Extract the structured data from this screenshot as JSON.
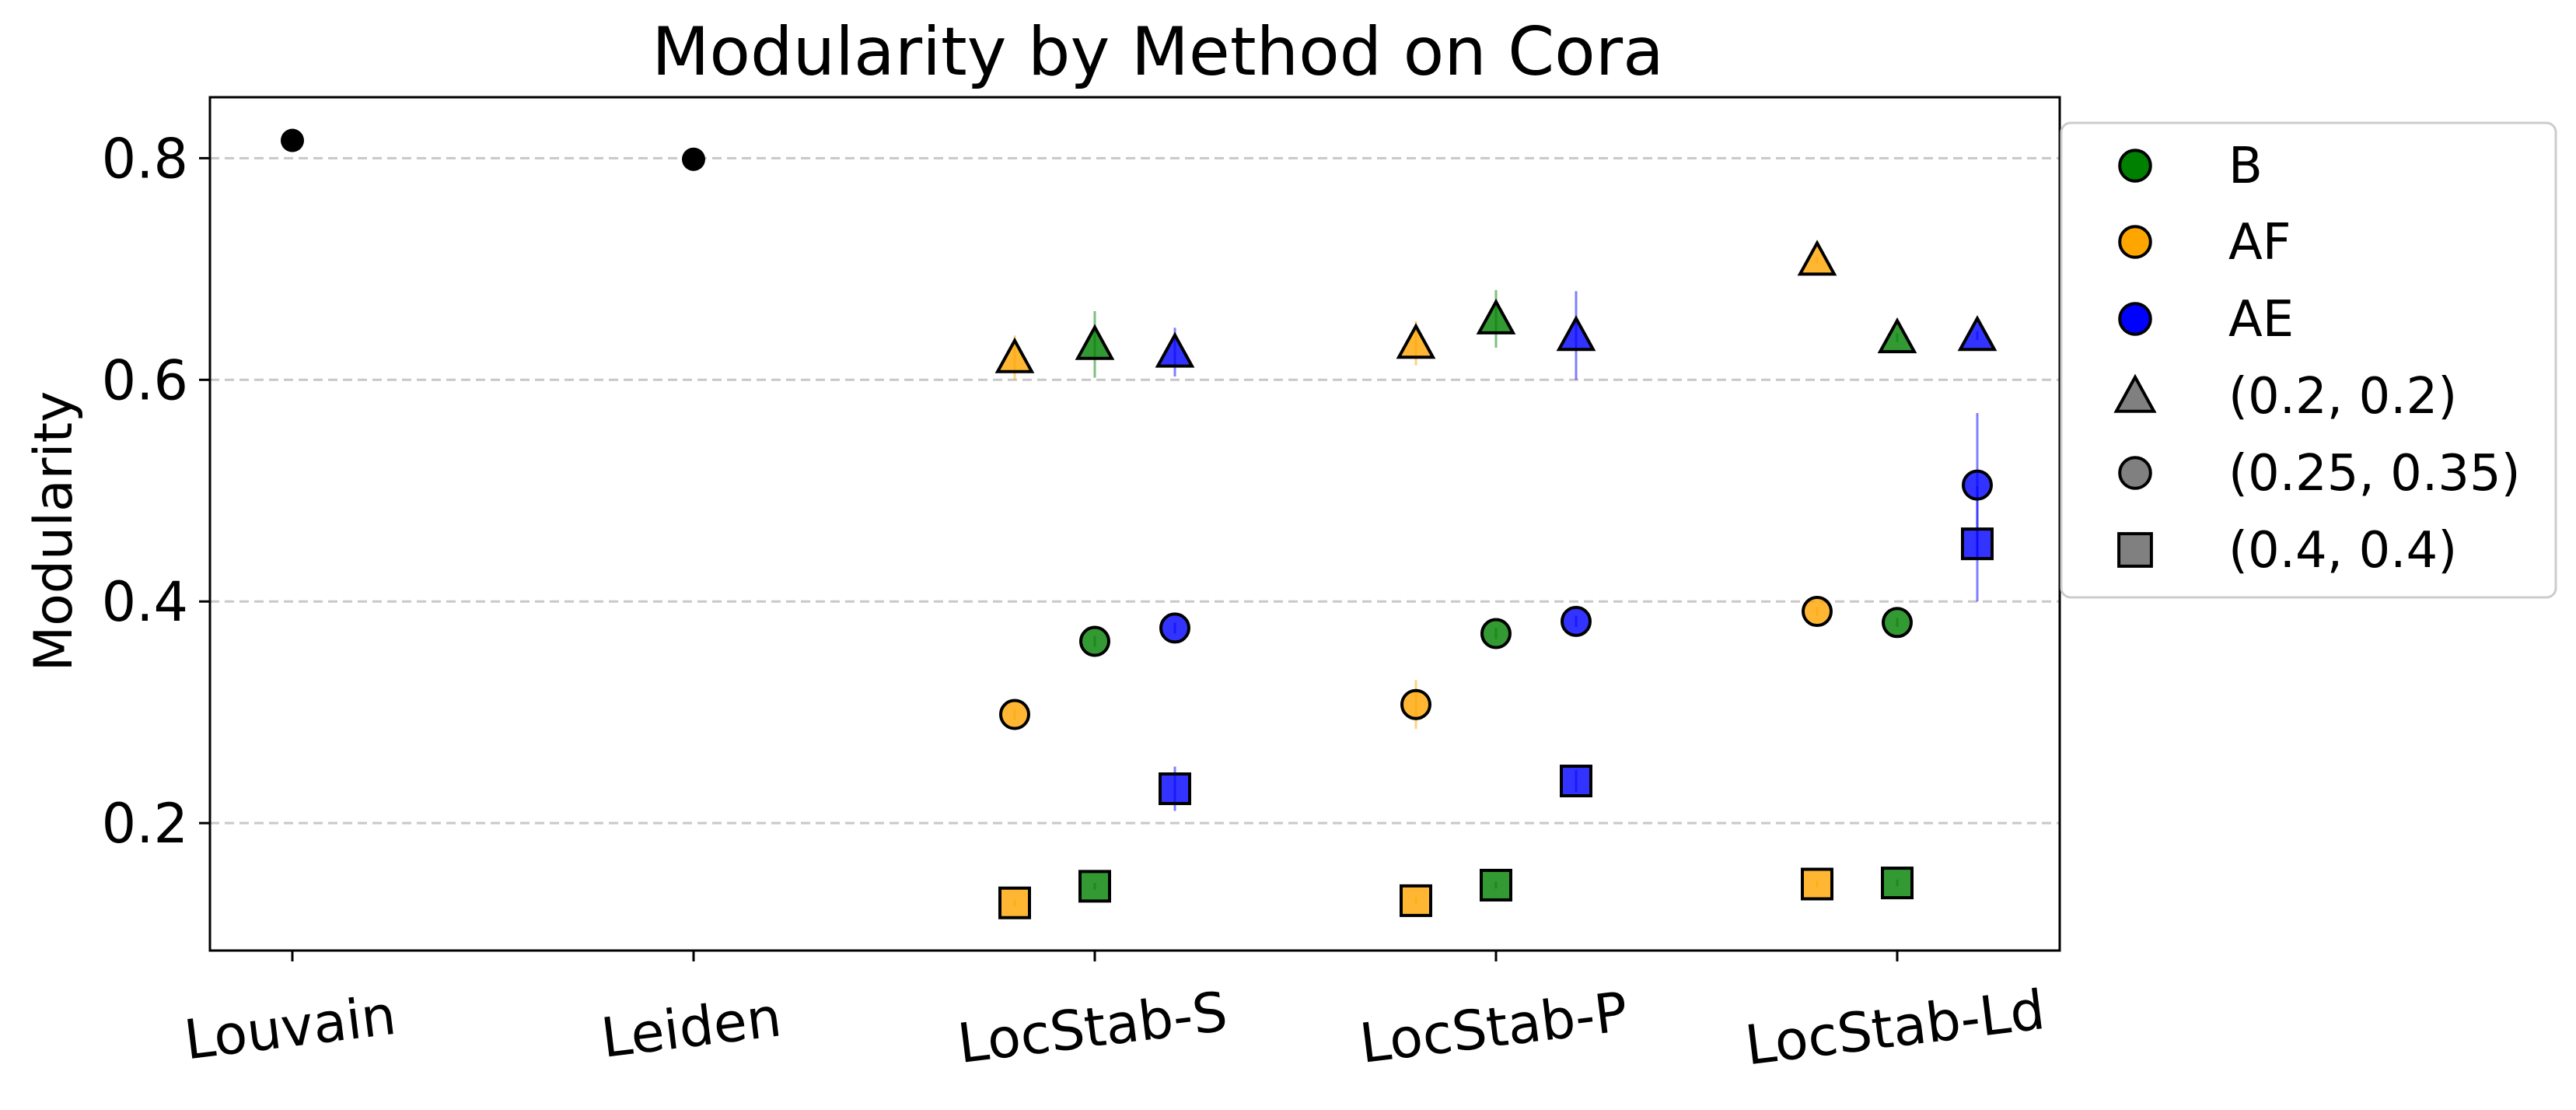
{
  "chart_data": {
    "type": "scatter",
    "title": "Modularity by Method on Cora",
    "xlabel": "",
    "ylabel": "Modularity",
    "categories": [
      "Louvain",
      "Leiden",
      "LocStab-S",
      "LocStab-P",
      "LocStab-Ld"
    ],
    "ylim": [
      0.085,
      0.855
    ],
    "yticks": [
      0.2,
      0.4,
      0.6,
      0.8
    ],
    "ytick_labels": [
      "0.2",
      "0.4",
      "0.6",
      "0.8"
    ],
    "grid": "y, dashed",
    "legend_position": "outside upper right",
    "color_legend": [
      {
        "label": "B",
        "color": "#008000"
      },
      {
        "label": "AF",
        "color": "#ffa500"
      },
      {
        "label": "AE",
        "color": "#0000ff"
      }
    ],
    "marker_legend": [
      {
        "label": "(0.2, 0.2)",
        "marker": "triangle"
      },
      {
        "label": "(0.25, 0.35)",
        "marker": "circle"
      },
      {
        "label": "(0.4, 0.4)",
        "marker": "square"
      }
    ],
    "baselines": [
      {
        "category": "Louvain",
        "value": 0.816,
        "err": 0.004,
        "color": "#000000"
      },
      {
        "category": "Leiden",
        "value": 0.799,
        "err": 0.008,
        "color": "#000000"
      }
    ],
    "points": [
      {
        "category": "LocStab-S",
        "variant": "AF",
        "marker": "triangle",
        "value": 0.62,
        "err": 0.02
      },
      {
        "category": "LocStab-S",
        "variant": "B",
        "marker": "triangle",
        "value": 0.632,
        "err": 0.03
      },
      {
        "category": "LocStab-S",
        "variant": "AE",
        "marker": "triangle",
        "value": 0.625,
        "err": 0.022
      },
      {
        "category": "LocStab-S",
        "variant": "AF",
        "marker": "circle",
        "value": 0.298,
        "err": 0.005
      },
      {
        "category": "LocStab-S",
        "variant": "B",
        "marker": "circle",
        "value": 0.364,
        "err": 0.005
      },
      {
        "category": "LocStab-S",
        "variant": "AE",
        "marker": "circle",
        "value": 0.376,
        "err": 0.005
      },
      {
        "category": "LocStab-S",
        "variant": "AF",
        "marker": "square",
        "value": 0.128,
        "err": 0.003
      },
      {
        "category": "LocStab-S",
        "variant": "B",
        "marker": "square",
        "value": 0.143,
        "err": 0.003
      },
      {
        "category": "LocStab-S",
        "variant": "AE",
        "marker": "square",
        "value": 0.231,
        "err": 0.02
      },
      {
        "category": "LocStab-P",
        "variant": "AF",
        "marker": "triangle",
        "value": 0.633,
        "err": 0.02
      },
      {
        "category": "LocStab-P",
        "variant": "B",
        "marker": "triangle",
        "value": 0.655,
        "err": 0.026
      },
      {
        "category": "LocStab-P",
        "variant": "AE",
        "marker": "triangle",
        "value": 0.64,
        "err": 0.04
      },
      {
        "category": "LocStab-P",
        "variant": "AF",
        "marker": "circle",
        "value": 0.307,
        "err": 0.022
      },
      {
        "category": "LocStab-P",
        "variant": "B",
        "marker": "circle",
        "value": 0.371,
        "err": 0.005
      },
      {
        "category": "LocStab-P",
        "variant": "AE",
        "marker": "circle",
        "value": 0.382,
        "err": 0.005
      },
      {
        "category": "LocStab-P",
        "variant": "AF",
        "marker": "square",
        "value": 0.13,
        "err": 0.003
      },
      {
        "category": "LocStab-P",
        "variant": "B",
        "marker": "square",
        "value": 0.144,
        "err": 0.003
      },
      {
        "category": "LocStab-P",
        "variant": "AE",
        "marker": "square",
        "value": 0.238,
        "err": 0.01
      },
      {
        "category": "LocStab-Ld",
        "variant": "AF",
        "marker": "triangle",
        "value": 0.708,
        "err": 0.003
      },
      {
        "category": "LocStab-Ld",
        "variant": "B",
        "marker": "triangle",
        "value": 0.638,
        "err": 0.004
      },
      {
        "category": "LocStab-Ld",
        "variant": "AE",
        "marker": "triangle",
        "value": 0.64,
        "err": 0.004
      },
      {
        "category": "LocStab-Ld",
        "variant": "AF",
        "marker": "circle",
        "value": 0.391,
        "err": 0.004
      },
      {
        "category": "LocStab-Ld",
        "variant": "B",
        "marker": "circle",
        "value": 0.381,
        "err": 0.004
      },
      {
        "category": "LocStab-Ld",
        "variant": "AE",
        "marker": "circle",
        "value": 0.505,
        "err": 0.065
      },
      {
        "category": "LocStab-Ld",
        "variant": "AF",
        "marker": "square",
        "value": 0.145,
        "err": 0.003
      },
      {
        "category": "LocStab-Ld",
        "variant": "B",
        "marker": "square",
        "value": 0.146,
        "err": 0.003
      },
      {
        "category": "LocStab-Ld",
        "variant": "AE",
        "marker": "square",
        "value": 0.452,
        "err": 0.052
      }
    ]
  }
}
